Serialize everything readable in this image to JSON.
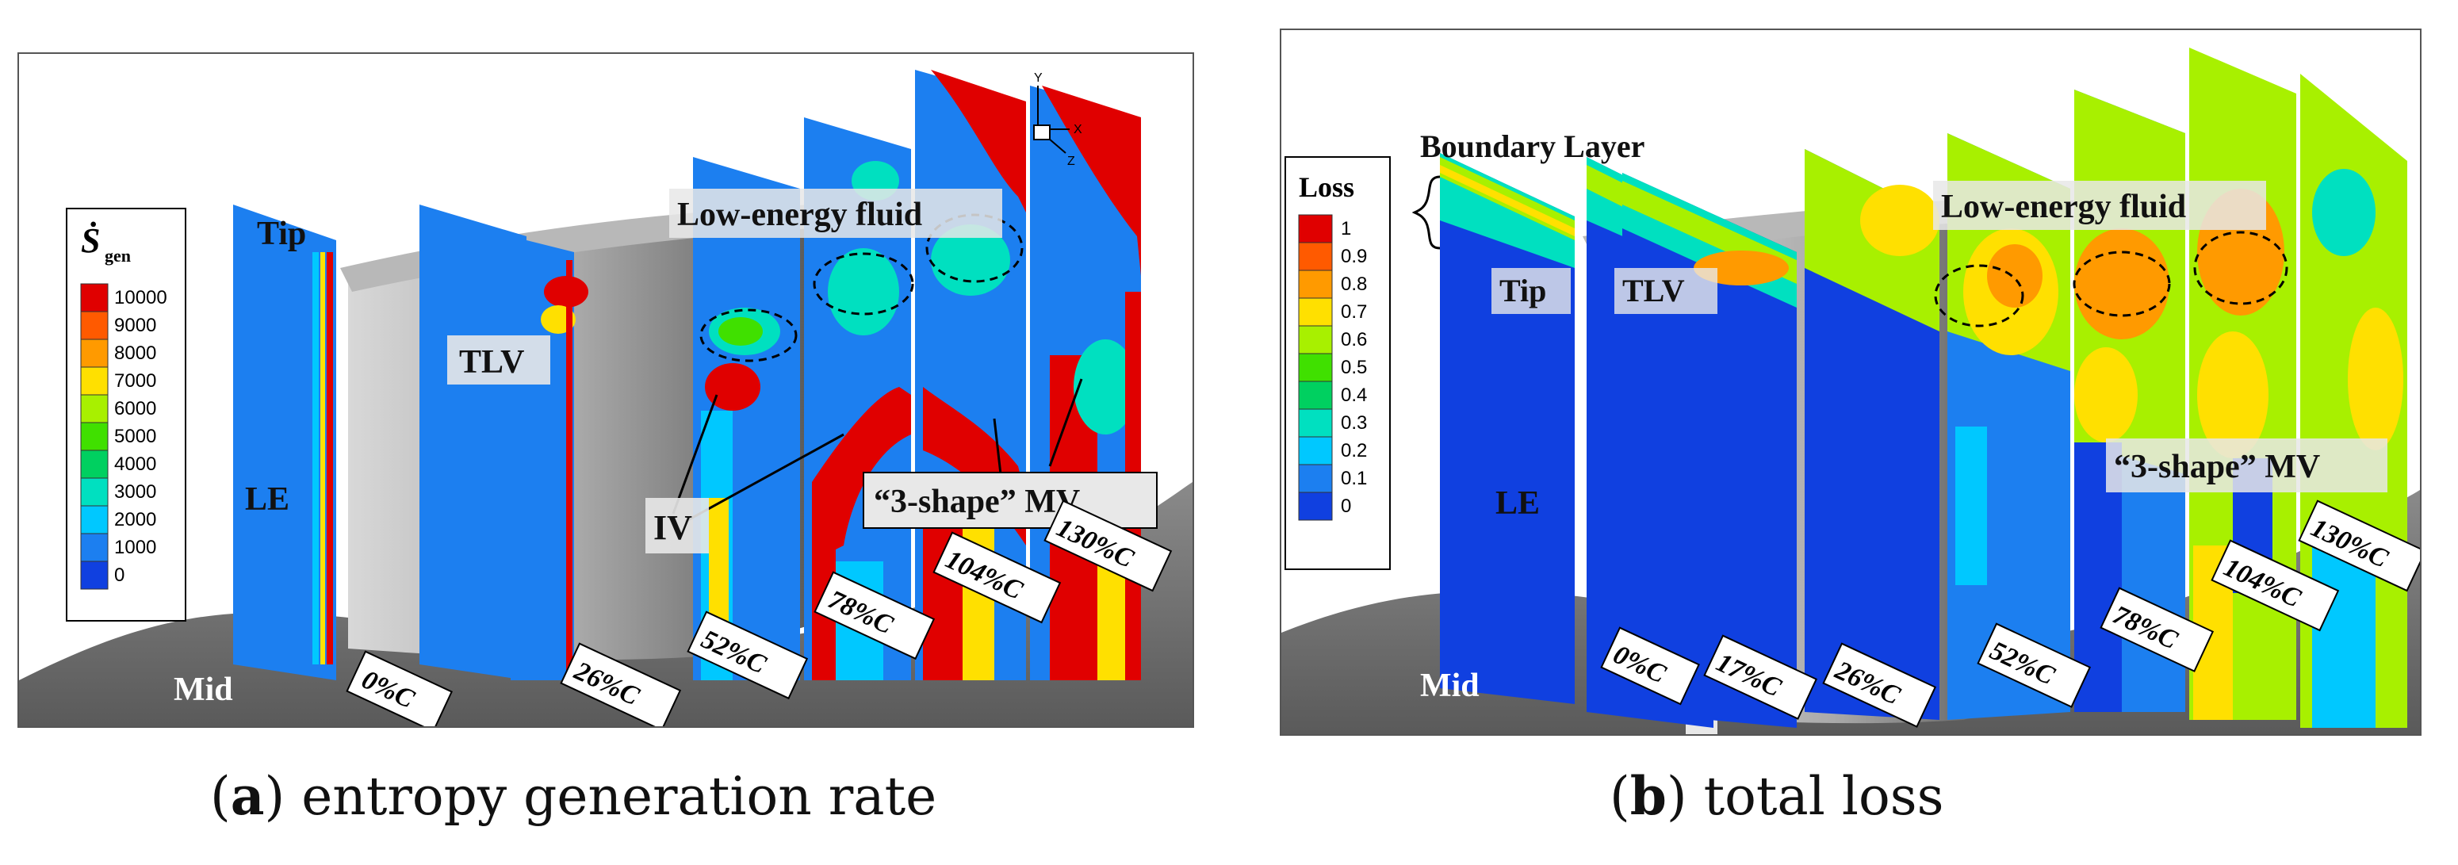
{
  "panel_a": {
    "legend_title": "Ṡ",
    "legend_subscript": "gen",
    "legend_values": [
      "10000",
      "9000",
      "8000",
      "7000",
      "6000",
      "5000",
      "4000",
      "3000",
      "2000",
      "1000",
      "0"
    ],
    "labels": {
      "tip": "Tip",
      "le": "LE",
      "mid": "Mid",
      "tlv": "TLV",
      "iv": "IV",
      "low_energy": "Low-energy fluid",
      "mv": "“3-shape” MV"
    },
    "stations": [
      "0%C",
      "26%C",
      "52%C",
      "78%C",
      "104%C",
      "130%C"
    ],
    "axis": {
      "y": "Y",
      "x": "X",
      "z": "Z"
    },
    "caption_letter": "a",
    "caption_text": "entropy generation rate"
  },
  "panel_b": {
    "legend_title": "Loss",
    "legend_values": [
      "1",
      "0.9",
      "0.8",
      "0.7",
      "0.6",
      "0.5",
      "0.4",
      "0.3",
      "0.2",
      "0.1",
      "0"
    ],
    "labels": {
      "boundary_layer": "Boundary Layer",
      "tip": "Tip",
      "tlv": "TLV",
      "le": "LE",
      "mid": "Mid",
      "low_energy": "Low-energy fluid",
      "mv": "“3-shape” MV"
    },
    "stations": [
      "0%C",
      "17%C",
      "26%C",
      "52%C",
      "78%C",
      "104%C",
      "130%C"
    ],
    "caption_letter": "b",
    "caption_text": "total loss"
  },
  "colors": {
    "legend_a": [
      "#e00000",
      "#ff5a00",
      "#ff9a00",
      "#ffe000",
      "#a8f000",
      "#40e000",
      "#00d060",
      "#00e0c0",
      "#00c8ff",
      "#1c7ff0",
      "#1040e0"
    ],
    "legend_b": [
      "#e00000",
      "#ff5a00",
      "#ff9a00",
      "#ffe000",
      "#a8f000",
      "#40e000",
      "#00d060",
      "#00e0c0",
      "#00c8ff",
      "#1c7ff0",
      "#1040e0"
    ]
  }
}
